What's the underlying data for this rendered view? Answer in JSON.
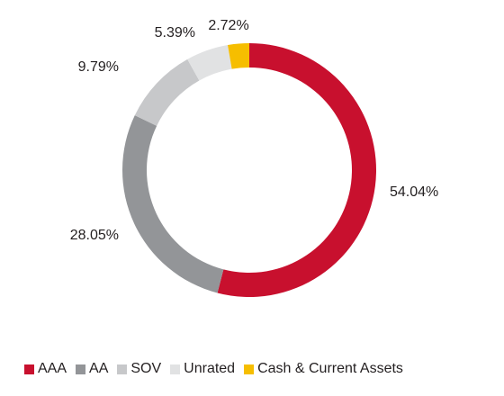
{
  "chart_data": {
    "type": "pie",
    "variant": "donut",
    "categories": [
      "AAA",
      "AA",
      "SOV",
      "Unrated",
      "Cash & Current Assets"
    ],
    "values": [
      54.04,
      28.05,
      9.79,
      5.39,
      2.72
    ],
    "value_labels": [
      "54.04%",
      "28.05%",
      "9.79%",
      "5.39%",
      "2.72%"
    ],
    "colors": [
      "#c8102e",
      "#939598",
      "#c7c8ca",
      "#e1e2e3",
      "#f6be00"
    ],
    "start": "top (12 o'clock), clockwise",
    "legend_position": "bottom"
  }
}
